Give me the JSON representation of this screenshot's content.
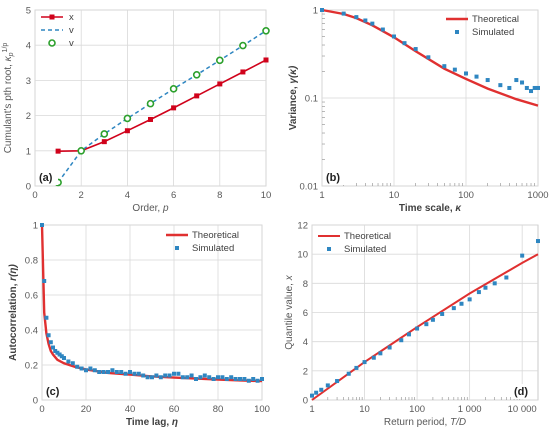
{
  "chart_data": [
    {
      "type": "line",
      "panel_label": "(a)",
      "xlabel_text": "Order, ",
      "xlabel_sym": "p",
      "ylabel_text": "Cumulant's pth root, ",
      "ylabel_sym": "κ",
      "ylabel_sub": "p",
      "ylabel_sup": "1/p",
      "xlim": [
        0,
        10
      ],
      "ylim": [
        0,
        5
      ],
      "xticks": [
        0,
        2,
        4,
        6,
        8,
        10
      ],
      "yticks": [
        0,
        1,
        2,
        3,
        4,
        5
      ],
      "grid": true,
      "legend_position": "top-left",
      "x": [
        1,
        2,
        3,
        4,
        5,
        6,
        7,
        8,
        9,
        10
      ],
      "series": [
        {
          "name": "x",
          "style": "solid-square",
          "color": "#d0021b",
          "values": [
            0.99,
            1.0,
            1.26,
            1.57,
            1.89,
            2.22,
            2.56,
            2.9,
            3.24,
            3.58
          ]
        },
        {
          "name": "v",
          "style": "dashed",
          "color": "#2e86c1",
          "values": [
            0.1,
            1.0,
            1.48,
            1.92,
            2.34,
            2.76,
            3.16,
            3.57,
            3.99,
            4.41
          ]
        },
        {
          "name": "v",
          "style": "circle",
          "color": "#2ca02c",
          "values": [
            0.1,
            1.0,
            1.48,
            1.92,
            2.34,
            2.76,
            3.16,
            3.57,
            3.99,
            4.41
          ]
        }
      ]
    },
    {
      "type": "scatter",
      "panel_label": "(b)",
      "xlabel_text": "Time scale, ",
      "xlabel_sym": "κ",
      "ylabel_text": "Variance, ",
      "ylabel_sym": "γ(κ)",
      "xscale": "log",
      "yscale": "log",
      "xlim": [
        1,
        1000
      ],
      "ylim": [
        0.01,
        1
      ],
      "xticks": [
        1,
        10,
        100,
        1000
      ],
      "xticklabels": [
        "1",
        "10",
        "100",
        "1000"
      ],
      "yticks": [
        0.01,
        0.1,
        1
      ],
      "yticklabels": [
        "0.01",
        "0.1",
        "1"
      ],
      "grid": true,
      "legend_position": "top-right",
      "theoretical": {
        "name": "Theoretical",
        "color": "#e03030",
        "x": [
          1,
          2,
          3,
          5,
          10,
          20,
          50,
          100,
          200,
          500,
          1000
        ],
        "y": [
          1.0,
          0.9,
          0.81,
          0.67,
          0.49,
          0.34,
          0.215,
          0.165,
          0.128,
          0.097,
          0.082
        ]
      },
      "simulated": {
        "name": "Simulated",
        "color": "#2e86c1",
        "x": [
          1,
          2,
          3,
          4,
          5,
          7,
          10,
          14,
          20,
          30,
          50,
          70,
          100,
          140,
          200,
          300,
          400,
          500,
          600,
          700,
          800,
          900,
          1000
        ],
        "y": [
          1.0,
          0.91,
          0.83,
          0.76,
          0.7,
          0.6,
          0.5,
          0.42,
          0.36,
          0.29,
          0.23,
          0.21,
          0.19,
          0.175,
          0.16,
          0.14,
          0.13,
          0.16,
          0.15,
          0.13,
          0.12,
          0.13,
          0.13
        ]
      }
    },
    {
      "type": "scatter",
      "panel_label": "(c)",
      "xlabel_text": "Time lag, ",
      "xlabel_sym": "η",
      "ylabel_text": "Autocorrelation, ",
      "ylabel_sym": "r(η)",
      "xlim": [
        0,
        100
      ],
      "ylim": [
        0,
        1
      ],
      "xticks": [
        0,
        20,
        40,
        60,
        80,
        100
      ],
      "yticks": [
        0,
        0.2,
        0.4,
        0.6,
        0.8,
        1
      ],
      "yticklabels": [
        "0",
        "0.2",
        "0.4",
        "0.6",
        "0.8",
        "1"
      ],
      "grid": true,
      "legend_position": "top-right",
      "theoretical": {
        "name": "Theoretical",
        "color": "#e03030",
        "x": [
          0,
          1,
          2,
          3,
          4,
          5,
          7,
          10,
          15,
          20,
          30,
          40,
          50,
          60,
          70,
          80,
          90,
          100
        ],
        "y": [
          1.0,
          0.5,
          0.38,
          0.32,
          0.28,
          0.26,
          0.23,
          0.21,
          0.19,
          0.175,
          0.155,
          0.145,
          0.135,
          0.128,
          0.122,
          0.117,
          0.112,
          0.108
        ]
      },
      "simulated": {
        "name": "Simulated",
        "color": "#2e86c1",
        "x": [
          0,
          1,
          2,
          3,
          4,
          5,
          6,
          7,
          8,
          9,
          10,
          12,
          14,
          16,
          18,
          20,
          22,
          24,
          26,
          28,
          30,
          32,
          34,
          36,
          38,
          40,
          42,
          44,
          46,
          48,
          50,
          52,
          54,
          56,
          58,
          60,
          62,
          64,
          66,
          68,
          70,
          72,
          74,
          76,
          78,
          80,
          82,
          84,
          86,
          88,
          90,
          92,
          94,
          96,
          98,
          100
        ],
        "y": [
          1.0,
          0.68,
          0.47,
          0.37,
          0.33,
          0.3,
          0.28,
          0.27,
          0.26,
          0.25,
          0.24,
          0.22,
          0.21,
          0.19,
          0.18,
          0.17,
          0.18,
          0.17,
          0.16,
          0.16,
          0.16,
          0.17,
          0.16,
          0.16,
          0.15,
          0.16,
          0.15,
          0.15,
          0.14,
          0.13,
          0.13,
          0.14,
          0.13,
          0.14,
          0.14,
          0.15,
          0.15,
          0.13,
          0.13,
          0.14,
          0.12,
          0.13,
          0.14,
          0.13,
          0.12,
          0.13,
          0.13,
          0.12,
          0.13,
          0.12,
          0.12,
          0.12,
          0.11,
          0.12,
          0.11,
          0.12
        ]
      }
    },
    {
      "type": "scatter",
      "panel_label": "(d)",
      "xlabel_text": "Return period, ",
      "xlabel_sym": "T/D",
      "ylabel_text": "Quantile value, ",
      "ylabel_sym": "x",
      "xscale": "log",
      "xlim": [
        1,
        20000
      ],
      "ylim": [
        0,
        12
      ],
      "xticks": [
        1,
        10,
        100,
        1000,
        10000
      ],
      "xticklabels": [
        "1",
        "10",
        "100",
        "1 000",
        "10 000"
      ],
      "yticks": [
        0,
        2,
        4,
        6,
        8,
        10,
        12
      ],
      "grid": true,
      "legend_position": "top-left",
      "theoretical": {
        "name": "Theoretical",
        "color": "#e03030",
        "x": [
          1,
          10,
          100,
          1000,
          10000,
          20000
        ],
        "y": [
          0.0,
          2.6,
          5.0,
          7.3,
          9.4,
          10.0
        ]
      },
      "simulated": {
        "name": "Simulated",
        "color": "#2e86c1",
        "x": [
          1,
          1.2,
          1.5,
          2,
          3,
          5,
          7,
          10,
          15,
          20,
          30,
          50,
          70,
          100,
          150,
          200,
          300,
          500,
          700,
          1000,
          1500,
          2000,
          3000,
          5000,
          10000,
          20000
        ],
        "y": [
          0.3,
          0.5,
          0.7,
          1.0,
          1.3,
          1.8,
          2.2,
          2.6,
          2.9,
          3.2,
          3.6,
          4.1,
          4.5,
          4.9,
          5.2,
          5.5,
          5.9,
          6.3,
          6.6,
          6.9,
          7.4,
          7.7,
          8.0,
          8.4,
          9.9,
          10.9
        ]
      }
    }
  ]
}
